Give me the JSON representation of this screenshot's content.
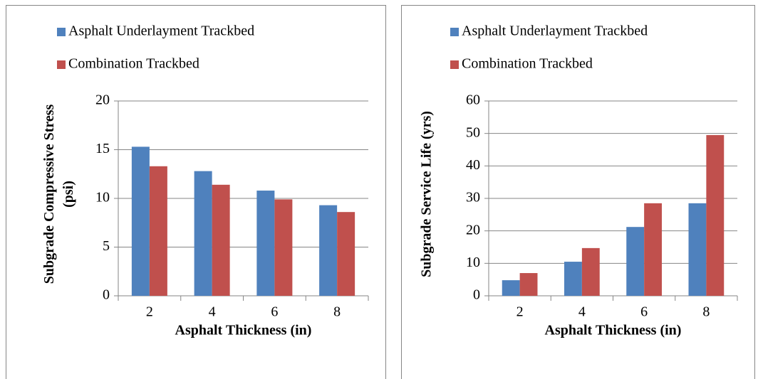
{
  "chart_data": [
    {
      "type": "bar",
      "x_label": "Asphalt Thickness (in)",
      "y_label": "Subgrade Compressive Stress (psi)",
      "categories": [
        "2",
        "4",
        "6",
        "8"
      ],
      "series": [
        {
          "name": "Asphalt Underlayment Trackbed",
          "color": "#4f81bd",
          "values": [
            15.3,
            12.8,
            10.8,
            9.3
          ]
        },
        {
          "name": "Combination Trackbed",
          "color": "#c0504d",
          "values": [
            13.3,
            11.4,
            9.9,
            8.6
          ]
        }
      ],
      "ylim": [
        0,
        20
      ],
      "yticks": [
        0,
        5,
        10,
        15,
        20
      ],
      "grid": true
    },
    {
      "type": "bar",
      "x_label": "Asphalt Thickness (in)",
      "y_label": "Subgrade Service Life (yrs)",
      "categories": [
        "2",
        "4",
        "6",
        "8"
      ],
      "series": [
        {
          "name": "Asphalt Underlayment Trackbed",
          "color": "#4f81bd",
          "values": [
            4.8,
            10.5,
            21.2,
            28.5
          ]
        },
        {
          "name": "Combination Trackbed",
          "color": "#c0504d",
          "values": [
            7.0,
            14.7,
            28.5,
            49.5
          ]
        }
      ],
      "ylim": [
        0,
        60
      ],
      "yticks": [
        0,
        10,
        20,
        30,
        40,
        50,
        60
      ],
      "grid": true
    }
  ]
}
